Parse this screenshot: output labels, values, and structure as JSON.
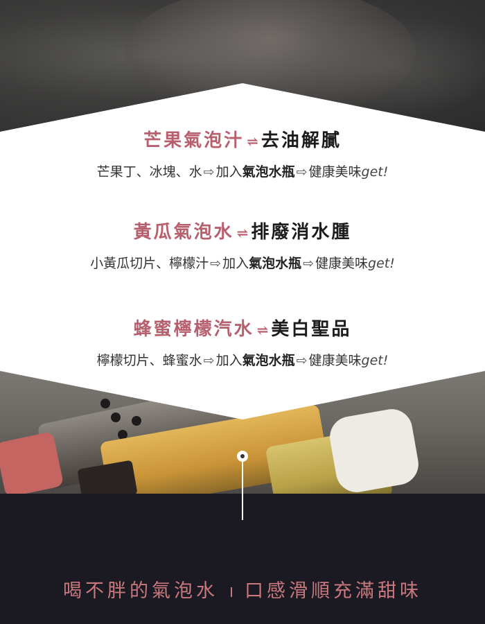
{
  "sections": [
    {
      "title_pink": "芒果氣泡汁",
      "arrow": "⇌",
      "title_black": "去油解膩",
      "desc_before": "芒果丁、冰塊、水",
      "desc_arrow1": "⇨",
      "desc_add": "加入",
      "desc_product": "氣泡水瓶",
      "desc_arrow2": "⇨",
      "desc_result": "健康美味",
      "desc_get": "get!"
    },
    {
      "title_pink": "黃瓜氣泡水",
      "arrow": "⇌",
      "title_black": "排廢消水腫",
      "desc_before": "小黃瓜切片、檸檬汁",
      "desc_arrow1": "⇨",
      "desc_add": "加入",
      "desc_product": "氣泡水瓶",
      "desc_arrow2": "⇨",
      "desc_result": "健康美味",
      "desc_get": "get!"
    },
    {
      "title_pink": "蜂蜜檸檬汽水",
      "arrow": "⇌",
      "title_black": "美白聖品",
      "desc_before": "檸檬切片、蜂蜜水",
      "desc_arrow1": "⇨",
      "desc_add": "加入",
      "desc_product": "氣泡水瓶",
      "desc_arrow2": "⇨",
      "desc_result": "健康美味",
      "desc_get": "get!"
    }
  ],
  "slogan": {
    "left": "喝不胖的氣泡水",
    "right": "口感滑順充滿甜味"
  },
  "colors": {
    "accent_pink": "#b85f6e",
    "slogan_pink": "#c9787d",
    "dark_band": "#1b1a22"
  }
}
